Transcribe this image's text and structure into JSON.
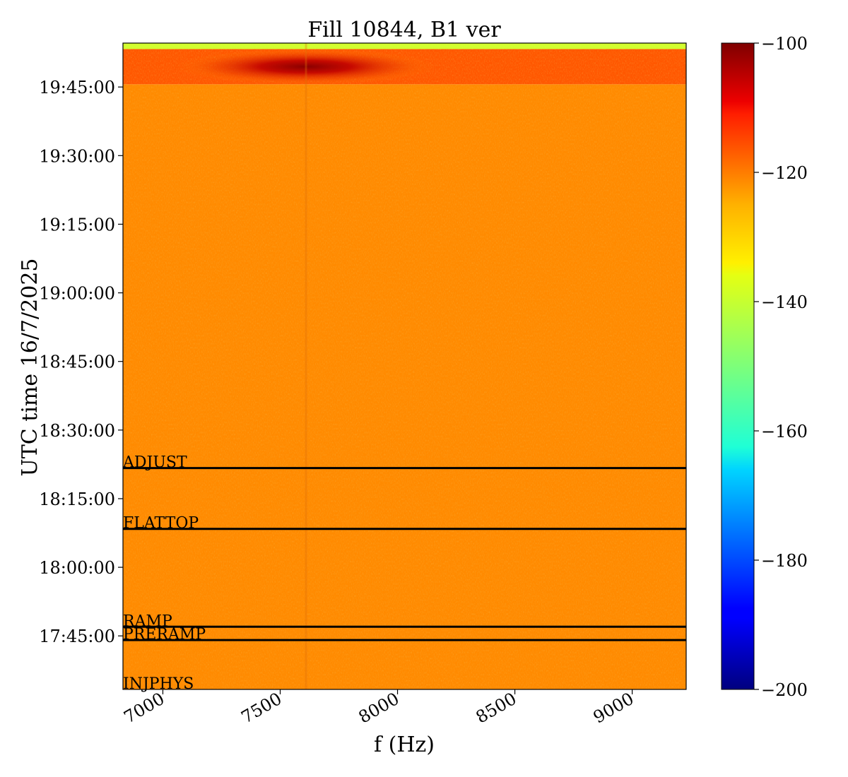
{
  "chart_data": {
    "type": "heatmap",
    "title": "Fill 10844, B1 ver",
    "xlabel": "f (Hz)",
    "ylabel": "UTC time 16/7/2025",
    "xlim": [
      6830,
      9230
    ],
    "ylim": [
      "17:33:18",
      "19:54:36"
    ],
    "x_ticks": [
      {
        "value": 7000,
        "label": "7000"
      },
      {
        "value": 7500,
        "label": "7500"
      },
      {
        "value": 8000,
        "label": "8000"
      },
      {
        "value": 8500,
        "label": "8500"
      },
      {
        "value": 9000,
        "label": "9000"
      }
    ],
    "y_ticks": [
      {
        "value": "17:45:00",
        "label": "17:45:00"
      },
      {
        "value": "18:00:00",
        "label": "18:00:00"
      },
      {
        "value": "18:15:00",
        "label": "18:15:00"
      },
      {
        "value": "18:30:00",
        "label": "18:30:00"
      },
      {
        "value": "18:45:00",
        "label": "18:45:00"
      },
      {
        "value": "19:00:00",
        "label": "19:00:00"
      },
      {
        "value": "19:15:00",
        "label": "19:15:00"
      },
      {
        "value": "19:30:00",
        "label": "19:30:00"
      },
      {
        "value": "19:45:00",
        "label": "19:45:00"
      }
    ],
    "colorbar": {
      "colormap": "jet",
      "range": [
        -200,
        -100
      ],
      "ticks": [
        {
          "value": -100,
          "label": "−100"
        },
        {
          "value": -120,
          "label": "−120"
        },
        {
          "value": -140,
          "label": "−140"
        },
        {
          "value": -160,
          "label": "−160"
        },
        {
          "value": -180,
          "label": "−180"
        },
        {
          "value": -200,
          "label": "−200"
        }
      ]
    },
    "markers": [
      {
        "label": "ADJUST",
        "time": "18:21:42"
      },
      {
        "label": "FLATTOP",
        "time": "18:08:24"
      },
      {
        "label": "RAMP",
        "time": "17:47:00"
      },
      {
        "label": "PRERAMP",
        "time": "17:44:06"
      },
      {
        "label": "INJPHYS",
        "time": "17:33:18"
      }
    ],
    "regions": [
      {
        "name": "baseline",
        "from": "17:33:18",
        "to": "19:45:36",
        "level_db": -126
      },
      {
        "name": "elevated",
        "from": "19:45:36",
        "to": "19:53:18",
        "level_db": -121
      },
      {
        "name": "peak",
        "from": "19:45:36",
        "to": "19:53:18",
        "f_center": 7610,
        "level_db": -104
      },
      {
        "name": "top-band",
        "from": "19:53:18",
        "to": "19:54:36",
        "level_db": -142
      }
    ]
  }
}
